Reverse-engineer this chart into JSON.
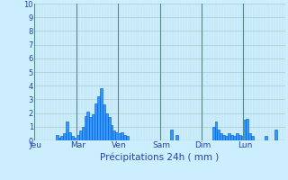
{
  "title": "Précipitations 24h ( mm )",
  "ylim": [
    0,
    10
  ],
  "yticks": [
    0,
    1,
    2,
    3,
    4,
    5,
    6,
    7,
    8,
    9,
    10
  ],
  "background_color": "#cceeff",
  "bar_color": "#0055cc",
  "bar_color2": "#3399ff",
  "grid_color_major": "#aacccc",
  "grid_color_minor": "#bbdddd",
  "day_line_color": "#558888",
  "day_labels": [
    "Jeu",
    "Mar",
    "Ven",
    "Sam",
    "Dim",
    "Lun"
  ],
  "day_positions": [
    0,
    16,
    32,
    48,
    64,
    80
  ],
  "n_bars": 96,
  "values": [
    0.0,
    0.0,
    0.0,
    0.0,
    0.0,
    0.0,
    0.0,
    0.0,
    0.4,
    0.2,
    0.3,
    0.5,
    1.4,
    0.6,
    0.3,
    0.2,
    0.4,
    0.7,
    1.0,
    1.8,
    2.1,
    1.7,
    1.9,
    2.7,
    3.2,
    3.8,
    2.6,
    2.0,
    1.7,
    1.1,
    0.7,
    0.6,
    0.5,
    0.6,
    0.4,
    0.3,
    0.0,
    0.0,
    0.0,
    0.0,
    0.0,
    0.0,
    0.0,
    0.0,
    0.0,
    0.0,
    0.0,
    0.0,
    0.0,
    0.0,
    0.0,
    0.0,
    0.8,
    0.0,
    0.4,
    0.0,
    0.0,
    0.0,
    0.0,
    0.0,
    0.0,
    0.0,
    0.0,
    0.0,
    0.0,
    0.0,
    0.0,
    0.0,
    1.0,
    1.4,
    0.8,
    0.5,
    0.4,
    0.3,
    0.5,
    0.4,
    0.3,
    0.5,
    0.4,
    0.3,
    1.5,
    1.6,
    0.5,
    0.3,
    0.0,
    0.0,
    0.0,
    0.0,
    0.3,
    0.0,
    0.0,
    0.0,
    0.8,
    0.0,
    0.0,
    0.0
  ]
}
